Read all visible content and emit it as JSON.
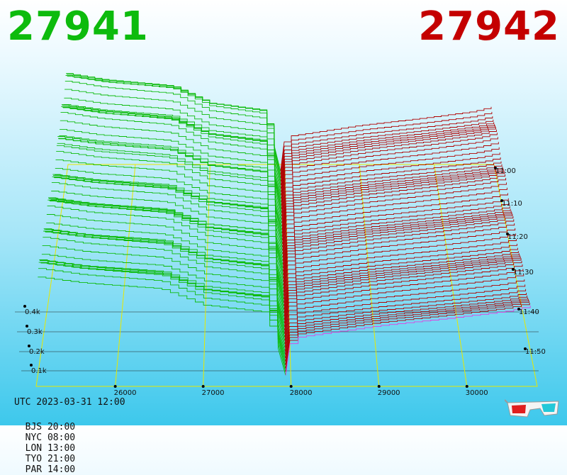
{
  "header": {
    "left_price": "27941",
    "right_price": "27942",
    "left_color": "#0dbb0d",
    "right_color": "#c40000"
  },
  "footer": {
    "utc": "UTC 2023-03-31 12:00",
    "zones": [
      {
        "label": "BJS 20:00"
      },
      {
        "label": "NYC 08:00"
      },
      {
        "label": "LON 13:00"
      },
      {
        "label": "TYO 21:00"
      },
      {
        "label": "PAR 14:00"
      }
    ]
  },
  "icons": {
    "glasses": "3d-glasses-icon"
  },
  "chart_data": {
    "type": "area",
    "title": "",
    "description_colors": {
      "bid": "#0dbb0d",
      "ask": "#b00000",
      "latest": "#e040e0",
      "frame": "#e8e800"
    },
    "price_axis": {
      "ticks": [
        26000,
        27000,
        28000,
        29000,
        30000
      ],
      "range": [
        25100,
        30800
      ]
    },
    "volume_axis": {
      "ticks": [
        "0.1k",
        "0.2k",
        "0.3k",
        "0.4k"
      ]
    },
    "time_axis": {
      "ticks": [
        "11:00",
        "11:10",
        "11:20",
        "11:30",
        "11:40",
        "11:50"
      ]
    },
    "series": [
      {
        "name": "27941",
        "side": "bid",
        "values": [
          [
            25100,
            420
          ],
          [
            25600,
            395
          ],
          [
            26500,
            370
          ],
          [
            27000,
            300
          ],
          [
            27700,
            270
          ],
          [
            27941,
            30
          ]
        ]
      },
      {
        "name": "27942",
        "side": "ask",
        "values": [
          [
            27942,
            20
          ],
          [
            28000,
            150
          ],
          [
            29000,
            200
          ],
          [
            29800,
            230
          ],
          [
            30500,
            260
          ],
          [
            30800,
            285
          ]
        ]
      }
    ]
  }
}
